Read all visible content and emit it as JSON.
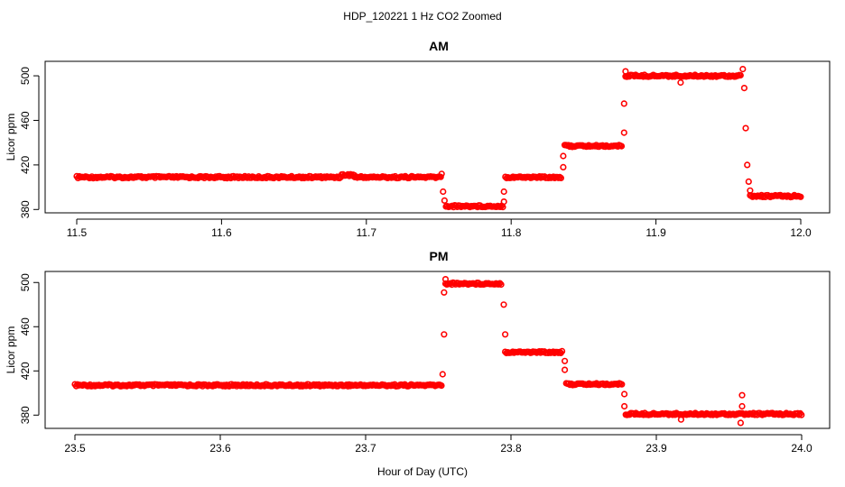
{
  "figure_title": "HDP_120221  1 Hz CO2 Zoomed",
  "xlabel": "Hour of Day (UTC)",
  "point_color": "#ff0000",
  "chart_data": [
    {
      "type": "scatter",
      "title": "AM",
      "ylabel": "Licor ppm",
      "xlim": [
        11.5,
        12.0
      ],
      "ylim": [
        377,
        513
      ],
      "xticks": [
        "11.5",
        "11.6",
        "11.7",
        "11.8",
        "11.9",
        "12.0"
      ],
      "yticks": [
        "380",
        "420",
        "460",
        "500"
      ],
      "segments": [
        {
          "x": [
            11.5,
            11.683
          ],
          "y": 409
        },
        {
          "x": [
            11.683,
            11.692
          ],
          "y": 411
        },
        {
          "x": [
            11.692,
            11.752
          ],
          "y": 409
        },
        {
          "x": [
            11.755,
            11.795
          ],
          "y": 383
        },
        {
          "x": [
            11.796,
            11.835
          ],
          "y": 409
        },
        {
          "x": [
            11.837,
            11.877
          ],
          "y": 437
        },
        {
          "x": [
            11.879,
            11.959
          ],
          "y": 500
        },
        {
          "x": [
            11.965,
            12.0
          ],
          "y": 392
        }
      ],
      "outliers": [
        {
          "x": 11.752,
          "y": 412
        },
        {
          "x": 11.753,
          "y": 396
        },
        {
          "x": 11.754,
          "y": 388
        },
        {
          "x": 11.795,
          "y": 387
        },
        {
          "x": 11.795,
          "y": 396
        },
        {
          "x": 11.836,
          "y": 418
        },
        {
          "x": 11.836,
          "y": 428
        },
        {
          "x": 11.878,
          "y": 449
        },
        {
          "x": 11.878,
          "y": 475
        },
        {
          "x": 11.879,
          "y": 504
        },
        {
          "x": 11.917,
          "y": 494
        },
        {
          "x": 11.96,
          "y": 506
        },
        {
          "x": 11.961,
          "y": 489
        },
        {
          "x": 11.962,
          "y": 453
        },
        {
          "x": 11.963,
          "y": 420
        },
        {
          "x": 11.964,
          "y": 405
        },
        {
          "x": 11.965,
          "y": 397
        }
      ]
    },
    {
      "type": "scatter",
      "title": "PM",
      "ylabel": "Licor ppm",
      "xlim": [
        23.5,
        24.0
      ],
      "ylim": [
        368,
        510
      ],
      "xticks": [
        "23.5",
        "23.6",
        "23.7",
        "23.8",
        "23.9",
        "24.0"
      ],
      "yticks": [
        "380",
        "420",
        "460",
        "500"
      ],
      "segments": [
        {
          "x": [
            23.5,
            23.753
          ],
          "y": 407
        },
        {
          "x": [
            23.755,
            23.794
          ],
          "y": 499
        },
        {
          "x": [
            23.796,
            23.836
          ],
          "y": 437
        },
        {
          "x": [
            23.838,
            23.877
          ],
          "y": 408
        },
        {
          "x": [
            23.879,
            24.0
          ],
          "y": 381
        }
      ],
      "outliers": [
        {
          "x": 23.753,
          "y": 417
        },
        {
          "x": 23.754,
          "y": 453
        },
        {
          "x": 23.754,
          "y": 491
        },
        {
          "x": 23.755,
          "y": 503
        },
        {
          "x": 23.795,
          "y": 480
        },
        {
          "x": 23.796,
          "y": 453
        },
        {
          "x": 23.837,
          "y": 421
        },
        {
          "x": 23.837,
          "y": 429
        },
        {
          "x": 23.878,
          "y": 399
        },
        {
          "x": 23.878,
          "y": 388
        },
        {
          "x": 23.917,
          "y": 376
        },
        {
          "x": 23.959,
          "y": 398
        },
        {
          "x": 23.959,
          "y": 388
        },
        {
          "x": 23.958,
          "y": 373
        }
      ]
    }
  ]
}
